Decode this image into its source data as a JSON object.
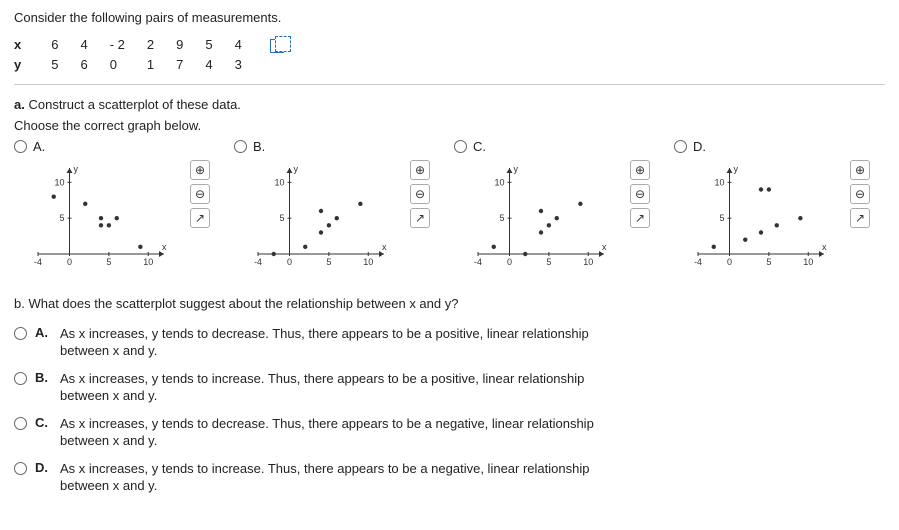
{
  "intro": "Consider the following pairs of measurements.",
  "table": {
    "row1_label": "x",
    "row2_label": "y",
    "x": [
      "6",
      "4",
      "- 2",
      "2",
      "9",
      "5",
      "4"
    ],
    "y": [
      "5",
      "6",
      "0",
      "1",
      "7",
      "4",
      "3"
    ]
  },
  "partA": {
    "label": "a.",
    "text": "Construct a scatterplot of these data.",
    "instruction": "Choose the correct graph below."
  },
  "chartCommon": {
    "xlim": [
      -4,
      12
    ],
    "ylim": [
      0,
      12
    ],
    "xticks": [
      -4,
      0,
      5,
      10
    ],
    "yticks": [
      5,
      10
    ],
    "xlabel": "x",
    "ylabel": "y",
    "axis_color": "#333333",
    "point_color": "#333333",
    "point_radius": 2.2,
    "arrow": true,
    "bg": "#ffffff",
    "width": 160,
    "height": 110
  },
  "choices": [
    {
      "letter": "A.",
      "points": [
        [
          6,
          5
        ],
        [
          4,
          4
        ],
        [
          -2,
          8
        ],
        [
          2,
          7
        ],
        [
          9,
          1
        ],
        [
          5,
          4
        ],
        [
          4,
          5
        ]
      ]
    },
    {
      "letter": "B.",
      "points": [
        [
          6,
          5
        ],
        [
          4,
          6
        ],
        [
          -2,
          0
        ],
        [
          2,
          1
        ],
        [
          9,
          7
        ],
        [
          5,
          4
        ],
        [
          4,
          3
        ]
      ]
    },
    {
      "letter": "C.",
      "points": [
        [
          6,
          5
        ],
        [
          4,
          6
        ],
        [
          -2,
          1
        ],
        [
          2,
          0
        ],
        [
          9,
          7
        ],
        [
          5,
          4
        ],
        [
          4,
          3
        ]
      ]
    },
    {
      "letter": "D.",
      "points": [
        [
          6,
          4
        ],
        [
          4,
          3
        ],
        [
          -2,
          1
        ],
        [
          2,
          2
        ],
        [
          9,
          5
        ],
        [
          5,
          9
        ],
        [
          4,
          9
        ]
      ]
    }
  ],
  "icons": {
    "zoom_in": "⊕",
    "zoom_out": "⊖",
    "popout": "↗"
  },
  "partB": {
    "label": "b.",
    "text": "What does the scatterplot suggest about the relationship between x and y?"
  },
  "mc": [
    {
      "letter": "A.",
      "text": "As x increases, y tends to decrease. Thus, there appears to be a positive, linear relationship between x and y."
    },
    {
      "letter": "B.",
      "text": "As x increases, y tends to increase. Thus, there appears to be a positive, linear relationship between x and y."
    },
    {
      "letter": "C.",
      "text": "As x increases, y tends to decrease. Thus, there appears to be a negative, linear relationship between x and y."
    },
    {
      "letter": "D.",
      "text": "As x increases, y tends to increase. Thus, there appears to be a negative, linear relationship between x and y."
    }
  ]
}
